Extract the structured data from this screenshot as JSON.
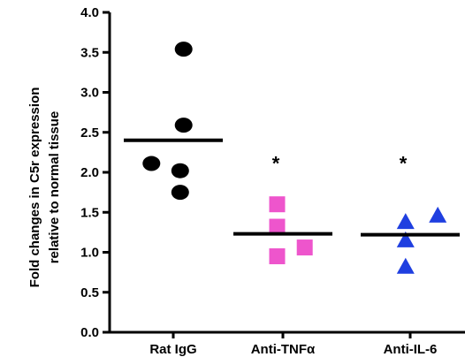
{
  "chart_data": {
    "type": "scatter",
    "title": "",
    "ylabel_lines": [
      "Fold changes in C5r expression",
      "relative to normal tissue"
    ],
    "ylim": [
      0,
      4.0
    ],
    "yticks": [
      "0.0",
      "0.5",
      "1.0",
      "1.5",
      "2.0",
      "2.5",
      "3.0",
      "3.5",
      "4.0"
    ],
    "grid": false,
    "categories": [
      "Rat IgG",
      "Anti-TNFα",
      "Anti-IL-6"
    ],
    "series": [
      {
        "category": "Rat IgG",
        "marker": "circle",
        "color": "#000000",
        "points": [
          {
            "offset": 0.09,
            "y": 3.54
          },
          {
            "offset": 0.09,
            "y": 2.59
          },
          {
            "offset": -0.19,
            "y": 2.11
          },
          {
            "offset": 0.06,
            "y": 2.02
          },
          {
            "offset": 0.06,
            "y": 1.75
          }
        ],
        "mean": 2.4,
        "significance": ""
      },
      {
        "category": "Anti-TNFα",
        "marker": "square",
        "color": "#ee55cc",
        "points": [
          {
            "offset": -0.05,
            "y": 1.6
          },
          {
            "offset": -0.05,
            "y": 1.32
          },
          {
            "offset": 0.19,
            "y": 1.06
          },
          {
            "offset": -0.05,
            "y": 0.95
          }
        ],
        "mean": 1.23,
        "significance": "*"
      },
      {
        "category": "Anti-IL-6",
        "marker": "triangle",
        "color": "#1f3fe0",
        "points": [
          {
            "offset": -0.04,
            "y": 1.38
          },
          {
            "offset": 0.24,
            "y": 1.46
          },
          {
            "offset": -0.04,
            "y": 1.15
          },
          {
            "offset": -0.04,
            "y": 0.82
          }
        ],
        "mean": 1.22,
        "significance": "*"
      }
    ]
  }
}
